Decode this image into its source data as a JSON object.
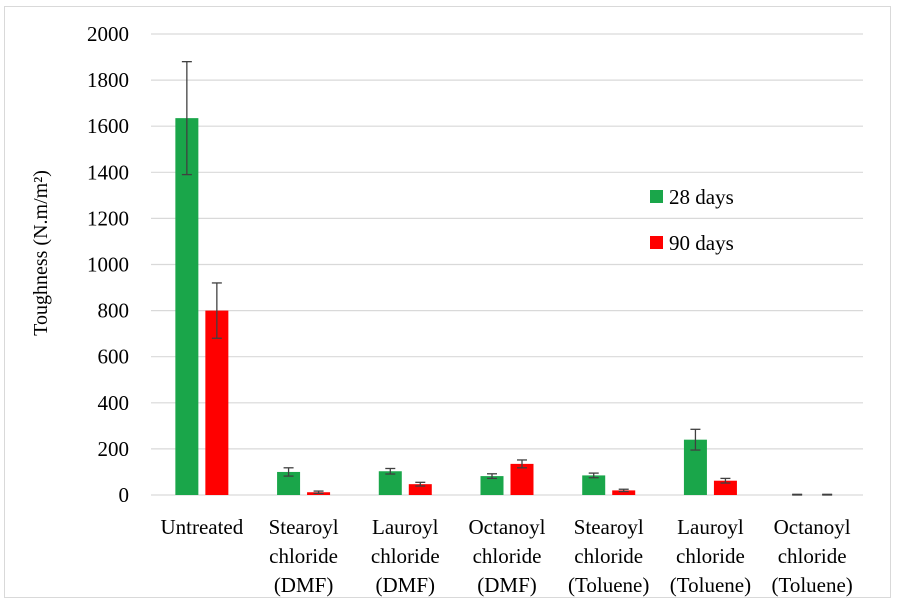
{
  "chart_data": {
    "type": "bar",
    "title": "",
    "xlabel": "",
    "ylabel": "Toughness (N.m/m²)",
    "ylim": [
      0,
      2000
    ],
    "yticks": [
      0,
      200,
      400,
      600,
      800,
      1000,
      1200,
      1400,
      1600,
      1800,
      2000
    ],
    "grid": "horizontal",
    "legend_position": "right",
    "categories": [
      [
        "Untreated"
      ],
      [
        "Stearoyl",
        "chloride",
        "(DMF)"
      ],
      [
        "Lauroyl",
        "chloride",
        "(DMF)"
      ],
      [
        "Octanoyl",
        "chloride",
        "(DMF)"
      ],
      [
        "Stearoyl",
        "chloride",
        "(Toluene)"
      ],
      [
        "Lauroyl",
        "chloride",
        "(Toluene)"
      ],
      [
        "Octanoyl",
        "chloride",
        "(Toluene)"
      ]
    ],
    "series": [
      {
        "name": "28 days",
        "color": "#1aa64a",
        "values": [
          1635,
          100,
          103,
          82,
          85,
          240,
          0
        ],
        "errors": [
          245,
          18,
          12,
          10,
          10,
          45,
          3
        ]
      },
      {
        "name": "90 days",
        "color": "#ff0000",
        "values": [
          800,
          12,
          47,
          135,
          20,
          62,
          0
        ],
        "errors": [
          120,
          5,
          8,
          17,
          5,
          10,
          3
        ]
      }
    ],
    "gridline_color": "#d9d9d9",
    "errorbar_color": "#404040"
  }
}
